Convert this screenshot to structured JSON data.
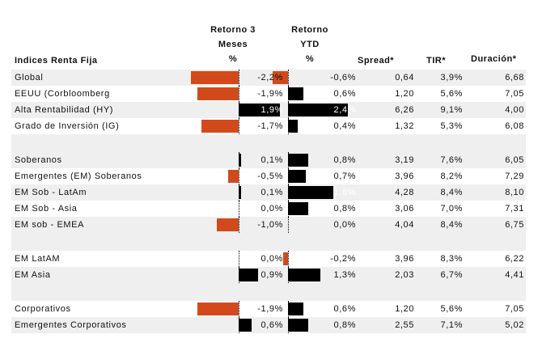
{
  "headers": {
    "name": "Indices Renta Fija",
    "ret3_line1": "Retorno 3",
    "ret3_line2": "Meses",
    "ret3_line3": "%",
    "ytd_line1": "Retorno",
    "ytd_line2": "YTD",
    "ytd_line3": "%",
    "spread": "Spread*",
    "tir": "TIR*",
    "duracion": "Duración*"
  },
  "colors": {
    "negative": "#d24a1c",
    "positive": "#000000",
    "shade": "#efefef"
  },
  "rows": [
    {
      "name": "Global",
      "ret3": "-2,2%",
      "ret3_val": -2.2,
      "ytd": "-0,6%",
      "ytd_val": -0.6,
      "spread": "0,64",
      "tir": "3,9%",
      "dur": "6,68"
    },
    {
      "name": "EEUU (Corbloomberg",
      "ret3": "-1,9%",
      "ret3_val": -1.9,
      "ytd": "0,6%",
      "ytd_val": 0.6,
      "spread": "1,20",
      "tir": "5,6%",
      "dur": "7,05"
    },
    {
      "name": "Alta Rentabilidad (HY)",
      "ret3": "1,9%",
      "ret3_val": 1.9,
      "ytd": "2,4%",
      "ytd_val": 2.4,
      "spread": "6,26",
      "tir": "9,1%",
      "dur": "4,00"
    },
    {
      "name": "Grado de Inversión (IG)",
      "ret3": "-1,7%",
      "ret3_val": -1.7,
      "ytd": "0,4%",
      "ytd_val": 0.4,
      "spread": "1,32",
      "tir": "5,3%",
      "dur": "6,08"
    },
    {
      "name": "Soberanos",
      "ret3": "0,1%",
      "ret3_val": 0.1,
      "ytd": "0,8%",
      "ytd_val": 0.8,
      "spread": "3,19",
      "tir": "7,6%",
      "dur": "6,05"
    },
    {
      "name": "Emergentes (EM) Soberanos",
      "ret3": "-0,5%",
      "ret3_val": -0.5,
      "ytd": "0,7%",
      "ytd_val": 0.7,
      "spread": "3,96",
      "tir": "8,2%",
      "dur": "7,29"
    },
    {
      "name": "EM Sob - LatAm",
      "ret3": "0,1%",
      "ret3_val": 0.1,
      "ytd": "1,8%",
      "ytd_val": 1.8,
      "spread": "4,28",
      "tir": "8,4%",
      "dur": "8,10"
    },
    {
      "name": "EM Sob - Asia",
      "ret3": "0,0%",
      "ret3_val": 0.0,
      "ytd": "0,8%",
      "ytd_val": 0.8,
      "spread": "3,06",
      "tir": "7,0%",
      "dur": "7,31"
    },
    {
      "name": "EM sob - EMEA",
      "ret3": "-1,0%",
      "ret3_val": -1.0,
      "ytd": "0,0%",
      "ytd_val": 0.0,
      "spread": "4,04",
      "tir": "8,4%",
      "dur": "6,75"
    },
    {
      "name": "EM LatAM",
      "ret3": "0,0%",
      "ret3_val": 0.0,
      "ytd": "-0,2%",
      "ytd_val": -0.2,
      "spread": "3,96",
      "tir": "8,3%",
      "dur": "6,22"
    },
    {
      "name": "EM Asia",
      "ret3": "0,9%",
      "ret3_val": 0.9,
      "ytd": "1,3%",
      "ytd_val": 1.3,
      "spread": "2,03",
      "tir": "6,7%",
      "dur": "4,41"
    },
    {
      "name": "Corporativos",
      "ret3": "-1,9%",
      "ret3_val": -1.9,
      "ytd": "0,6%",
      "ytd_val": 0.6,
      "spread": "1,20",
      "tir": "5,6%",
      "dur": "7,05"
    },
    {
      "name": "Emergentes Corporativos",
      "ret3": "0,6%",
      "ret3_val": 0.6,
      "ytd": "0,8%",
      "ytd_val": 0.8,
      "spread": "2,55",
      "tir": "7,1%",
      "dur": "5,02"
    }
  ]
}
